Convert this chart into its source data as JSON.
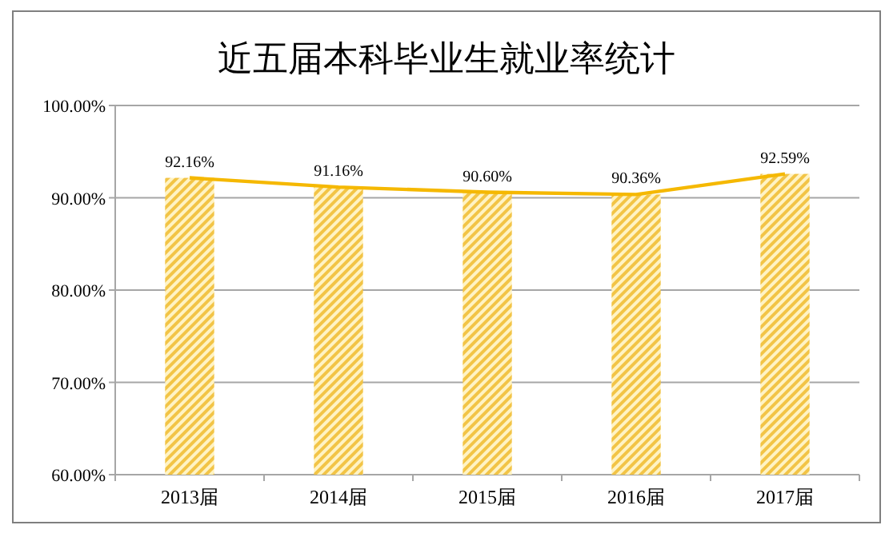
{
  "chart_data": {
    "type": "bar",
    "title": "近五届本科毕业生就业率统计",
    "categories": [
      "2013届",
      "2014届",
      "2015届",
      "2016届",
      "2017届"
    ],
    "series": [
      {
        "color": "#f2c446",
        "values": [
          92.16,
          91.16,
          90.6,
          90.36,
          92.59
        ],
        "value_labels": [
          "92.16%",
          "91.16%",
          "90.60%",
          "90.36%",
          "92.59%"
        ]
      },
      {
        "type": "line",
        "color": "#f5b800",
        "values": [
          92.16,
          91.16,
          90.6,
          90.36,
          92.59
        ],
        "marker": "none",
        "line_style": "solid"
      }
    ],
    "ylim": [
      60,
      100
    ],
    "yticks": [
      {
        "value": 60,
        "label": "60.00%"
      },
      {
        "value": 70,
        "label": "70.00%"
      },
      {
        "value": 80,
        "label": "80.00%"
      },
      {
        "value": 90,
        "label": "90.00%"
      },
      {
        "value": 100,
        "label": "100.00%"
      }
    ],
    "grid": "y"
  }
}
